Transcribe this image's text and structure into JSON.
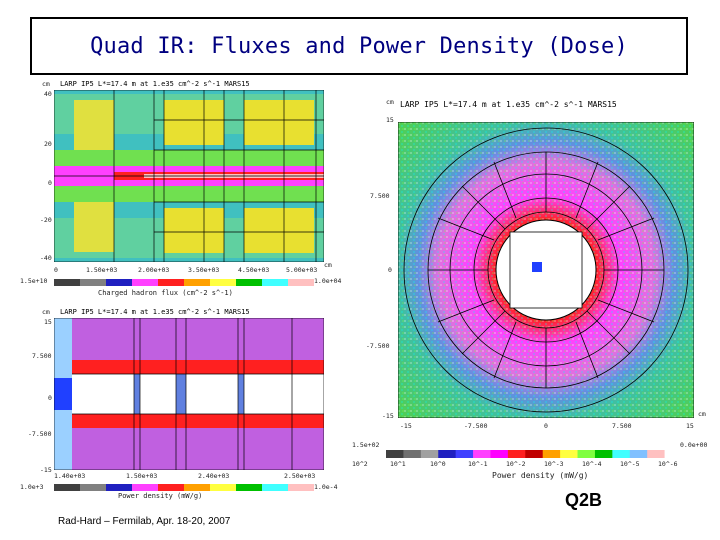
{
  "title": "Quad IR: Fluxes and Power Density (Dose)",
  "footer": "Rad-Hard – Fermilab, Apr. 18-20, 2007",
  "tag": "Q2B",
  "chart_data": [
    {
      "type": "heatmap",
      "panel": "flux-longitudinal",
      "header": "LARP IP5  L*=17.4 m  at 1.e35 cm^-2 s^-1        MARS15",
      "y_unit": "cm",
      "x_unit": "cm",
      "y_ticks": [
        "40",
        "20",
        "0",
        "-20",
        "-40"
      ],
      "x_ticks": [
        "0",
        "1.50e+03",
        "2.00e+03",
        "3.50e+03",
        "4.50e+03",
        "5.00e+03"
      ],
      "scale_label": "Charged hadron flux (cm^-2 s^-1)",
      "scale_min": "1.5e+10",
      "scale_max": "1.0e+04"
    },
    {
      "type": "heatmap",
      "panel": "power-longitudinal",
      "header": "LARP IP5  L*=17.4 m  at 1.e35 cm^-2 s^-1        MARS15",
      "y_unit": "cm",
      "y_ticks": [
        "15",
        "7.500",
        "0",
        "-7.500",
        "-15"
      ],
      "x_ticks": [
        "1.40e+03",
        "1.50e+03",
        "2.40e+03",
        "2.50e+03"
      ],
      "scale_label": "Power density (mW/g)",
      "scale_min": "1.0e+3",
      "scale_max": "1.0e-4"
    },
    {
      "type": "heatmap",
      "panel": "power-cross-section",
      "header": "LARP IP5  L*=17.4 m  at 1.e35 cm^-2 s^-1        MARS15",
      "y_unit": "cm",
      "x_unit": "cm",
      "y_ticks": [
        "15",
        "7.500",
        "0",
        "-7.500",
        "-15"
      ],
      "x_ticks": [
        "-15",
        "-7.500",
        "0",
        "7.500",
        "15"
      ],
      "scale_label": "Power density (mW/g)",
      "scale_min": "1.5e+02",
      "scale_max": "0.0e+00",
      "scale_ticks": [
        "10^2",
        "10^1",
        "10^0",
        "10^-1",
        "10^-2",
        "10^-3",
        "10^-4",
        "10^-5",
        "10^-6"
      ],
      "scale_colors": [
        "#404040",
        "#707070",
        "#a0a0a0",
        "#2020c0",
        "#4040ff",
        "#ff40ff",
        "#ff00ff",
        "#ff2020",
        "#c00000",
        "#ffa000",
        "#ffff40",
        "#80ff40",
        "#00c000",
        "#40ffff",
        "#80c0ff",
        "#ffc0c0",
        "#ffffff"
      ]
    }
  ]
}
